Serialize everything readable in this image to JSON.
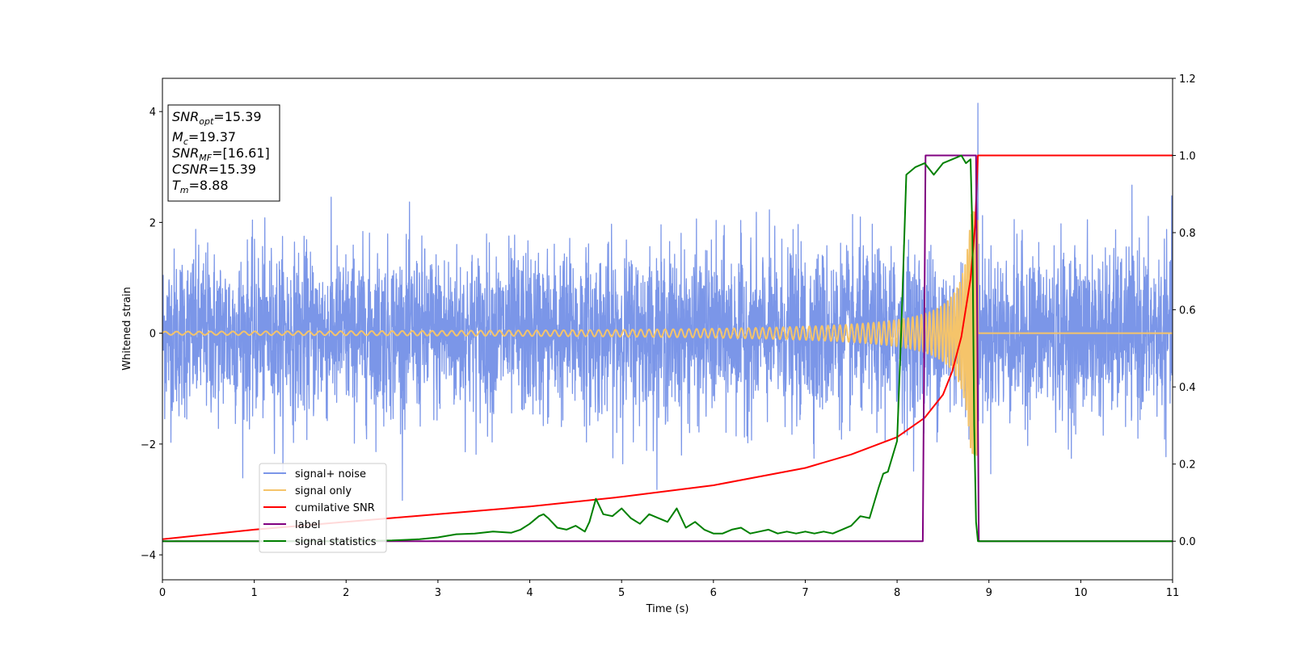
{
  "chart_data": {
    "type": "line",
    "xlabel": "Time (s)",
    "ylabel": "Whitened strain",
    "xlim": [
      0,
      11
    ],
    "ylim": [
      -4.45,
      4.6
    ],
    "y2lim": [
      -0.1,
      1.2
    ],
    "x_ticks": [
      "0",
      "1",
      "2",
      "3",
      "4",
      "5",
      "6",
      "7",
      "8",
      "9",
      "10",
      "11"
    ],
    "y_ticks": [
      "−4",
      "−2",
      "0",
      "2",
      "4"
    ],
    "y2_ticks": [
      "0.0",
      "0.2",
      "0.4",
      "0.6",
      "0.8",
      "1.0",
      "1.2"
    ],
    "grid": false,
    "legend_position": "lower-left",
    "annotation": {
      "lines": [
        {
          "main": "SNR",
          "sub": "opt",
          "rest": "=15.39"
        },
        {
          "main": "M",
          "sub": "c",
          "rest": "=19.37"
        },
        {
          "main": "SNR",
          "sub": "MF",
          "rest": "=[16.61]"
        },
        {
          "main": "CSNR",
          "sub": "",
          "rest": "=15.39"
        },
        {
          "main": "T",
          "sub": "m",
          "rest": "=8.88"
        }
      ]
    },
    "series": [
      {
        "name": "signal+ noise",
        "color": "#7b96e8",
        "axis": "left",
        "kind": "noise",
        "sigma": 0.75,
        "spike_max": 4.15,
        "spike_time": 8.88
      },
      {
        "name": "signal only",
        "color": "#f5c46a",
        "axis": "left",
        "kind": "chirp",
        "merger_time": 8.88,
        "amplitude_start": 0.03,
        "amplitude_peak": 2.2
      },
      {
        "name": "cumilative SNR",
        "color": "#ff0000",
        "axis": "right",
        "x": [
          0,
          1,
          2,
          3,
          4,
          5,
          6,
          7,
          7.5,
          8,
          8.3,
          8.5,
          8.6,
          8.7,
          8.8,
          8.85,
          8.88,
          11
        ],
        "y": [
          0.005,
          0.03,
          0.05,
          0.07,
          0.09,
          0.115,
          0.145,
          0.19,
          0.225,
          0.27,
          0.32,
          0.38,
          0.44,
          0.53,
          0.68,
          0.82,
          1.0,
          1.0
        ]
      },
      {
        "name": "label",
        "color": "#800080",
        "axis": "right",
        "x": [
          0,
          8.28,
          8.31,
          8.86,
          8.89,
          11
        ],
        "y": [
          0,
          0,
          1,
          1,
          0,
          0
        ]
      },
      {
        "name": "signal statistics",
        "color": "#008000",
        "axis": "right",
        "x": [
          0,
          1,
          2,
          2.5,
          2.8,
          3.0,
          3.2,
          3.4,
          3.6,
          3.8,
          3.9,
          4.0,
          4.1,
          4.15,
          4.2,
          4.3,
          4.4,
          4.5,
          4.6,
          4.65,
          4.72,
          4.8,
          4.9,
          5.0,
          5.1,
          5.2,
          5.3,
          5.4,
          5.5,
          5.6,
          5.7,
          5.8,
          5.9,
          6.0,
          6.1,
          6.2,
          6.3,
          6.4,
          6.5,
          6.6,
          6.7,
          6.8,
          6.9,
          7.0,
          7.1,
          7.2,
          7.3,
          7.4,
          7.5,
          7.6,
          7.7,
          7.8,
          7.85,
          7.9,
          8.0,
          8.05,
          8.1,
          8.2,
          8.3,
          8.4,
          8.5,
          8.6,
          8.65,
          8.7,
          8.75,
          8.8,
          8.82,
          8.84,
          8.86,
          8.88,
          8.92,
          9.0,
          11
        ],
        "y": [
          0.0,
          0.0,
          0.0,
          0.002,
          0.005,
          0.01,
          0.018,
          0.02,
          0.025,
          0.022,
          0.03,
          0.045,
          0.065,
          0.07,
          0.06,
          0.035,
          0.03,
          0.04,
          0.025,
          0.05,
          0.11,
          0.07,
          0.065,
          0.085,
          0.06,
          0.045,
          0.07,
          0.06,
          0.05,
          0.085,
          0.035,
          0.05,
          0.03,
          0.02,
          0.02,
          0.03,
          0.035,
          0.02,
          0.025,
          0.03,
          0.02,
          0.025,
          0.02,
          0.025,
          0.02,
          0.025,
          0.02,
          0.03,
          0.04,
          0.065,
          0.06,
          0.14,
          0.175,
          0.18,
          0.26,
          0.58,
          0.95,
          0.97,
          0.98,
          0.95,
          0.98,
          0.99,
          0.995,
          1.0,
          0.98,
          0.99,
          0.8,
          0.3,
          0.05,
          0.0,
          0.0,
          0.0,
          0.0
        ]
      }
    ]
  }
}
